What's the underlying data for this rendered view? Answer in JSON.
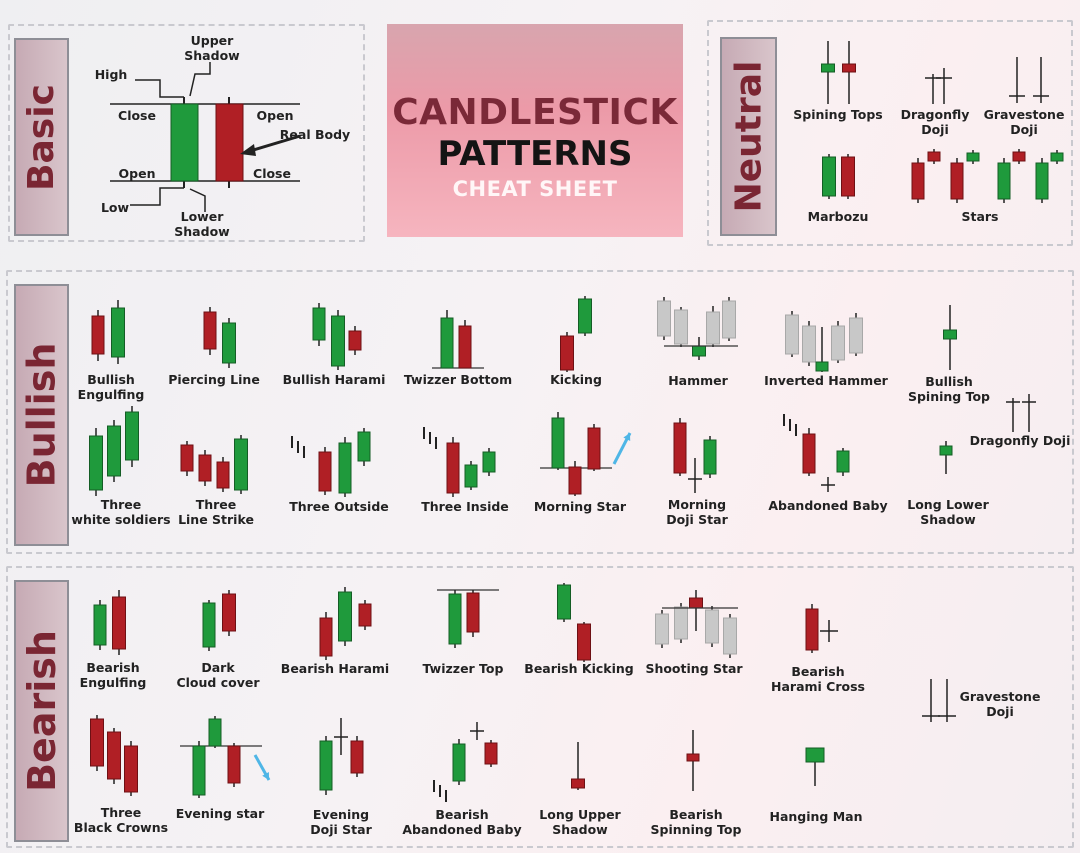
{
  "title": {
    "line1": "CANDLESTICK",
    "line2": "PATTERNS",
    "line3": "CHEAT SHEET"
  },
  "sections": {
    "basic": "Basic",
    "neutral": "Neutral",
    "bullish": "Bullish",
    "bearish": "Bearish"
  },
  "colors": {
    "bull": "#1f9a3c",
    "bear": "#b01f25",
    "gray": "#c8c8c8",
    "wick": "#222222"
  },
  "basic": {
    "upper_shadow": "Upper\nShadow",
    "high": "High",
    "close_left": "Close",
    "open_right": "Open",
    "real_body": "Real Body",
    "open_left": "Open",
    "close_right": "Close",
    "low": "Low",
    "lower_shadow": "Lower\nShadow"
  },
  "neutral": {
    "spinning_tops": "Spining Tops",
    "dragonfly_doji": "Dragonfly\nDoji",
    "gravestone_doji": "Gravestone\nDoji",
    "marbozu": "Marbozu",
    "stars": "Stars"
  },
  "bullish": {
    "bullish_engulfing": "Bullish\nEngulfing",
    "piercing_line": "Piercing Line",
    "bullish_harami": "Bullish Harami",
    "twizzer_bottom": "Twizzer Bottom",
    "kicking": "Kicking",
    "hammer": "Hammer",
    "inverted_hammer": "Inverted Hammer",
    "bullish_spinning_top": "Bullish\nSpining Top",
    "dragonfly_doji": "Dragonfly Doji",
    "three_white_soldiers": "Three\nwhite soldiers",
    "three_line_strike": "Three\nLine Strike",
    "three_outside": "Three Outside",
    "three_inside": "Three Inside",
    "morning_star": "Morning Star",
    "morning_doji_star": "Morning\nDoji Star",
    "abandoned_baby": "Abandoned Baby",
    "long_lower_shadow": "Long Lower\nShadow"
  },
  "bearish": {
    "bearish_engulfing": "Bearish\nEngulfing",
    "dark_cloud_cover": "Dark\nCloud cover",
    "bearish_harami": "Bearish Harami",
    "twizzer_top": "Twizzer Top",
    "bearish_kicking": "Bearish Kicking",
    "shooting_star": "Shooting Star",
    "bearish_harami_cross": "Bearish\nHarami Cross",
    "gravestone_doji": "Gravestone\nDoji",
    "three_black_crowns": "Three\nBlack Crowns",
    "evening_star": "Evening star",
    "evening_doji_star": "Evening\nDoji Star",
    "bearish_abandoned_baby": "Bearish\nAbandoned Baby",
    "long_upper_shadow": "Long Upper\nShadow",
    "bearish_spinning_top": "Bearish\nSpinning Top",
    "hanging_man": "Hanging Man"
  }
}
